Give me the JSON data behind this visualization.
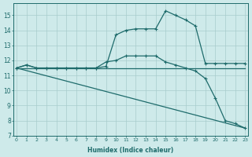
{
  "xlabel": "Humidex (Indice chaleur)",
  "background_color": "#ceeaea",
  "grid_color": "#a8cccc",
  "line_color": "#1e6b6b",
  "x_ticks": [
    0,
    1,
    2,
    3,
    4,
    5,
    6,
    7,
    8,
    9,
    10,
    11,
    12,
    13,
    14,
    15,
    16,
    17,
    18,
    19,
    20,
    21,
    22,
    23
  ],
  "ylim": [
    7,
    15.8
  ],
  "xlim": [
    -0.3,
    23.3
  ],
  "yticks": [
    7,
    8,
    9,
    10,
    11,
    12,
    13,
    14,
    15
  ],
  "series": [
    {
      "x": [
        0,
        1,
        2,
        3,
        4,
        5,
        6,
        7,
        8,
        9,
        10,
        11,
        12,
        13,
        14,
        15,
        16,
        17,
        18,
        19,
        20,
        21,
        22,
        23
      ],
      "y": [
        11.5,
        11.7,
        11.5,
        11.5,
        11.5,
        11.5,
        11.5,
        11.5,
        11.5,
        11.6,
        13.7,
        14.0,
        14.1,
        14.1,
        14.1,
        15.3,
        15.0,
        14.7,
        14.3,
        11.8,
        11.8,
        11.8,
        11.8,
        11.8
      ],
      "marker": true
    },
    {
      "x": [
        0,
        1,
        2,
        3,
        4,
        5,
        6,
        7,
        8,
        9,
        10,
        11,
        12,
        13,
        14,
        15,
        16,
        17,
        18,
        19,
        20,
        21,
        22,
        23
      ],
      "y": [
        11.5,
        11.5,
        11.5,
        11.5,
        11.5,
        11.5,
        11.5,
        11.5,
        11.5,
        11.5,
        11.5,
        11.5,
        11.5,
        11.5,
        11.5,
        11.5,
        11.5,
        11.5,
        11.5,
        11.5,
        11.5,
        11.5,
        11.5,
        11.5
      ],
      "marker": false
    },
    {
      "x": [
        0,
        1,
        2,
        3,
        4,
        5,
        6,
        7,
        8,
        9,
        10,
        11,
        12,
        13,
        14,
        15,
        16,
        17,
        18,
        19,
        20,
        21,
        22,
        23
      ],
      "y": [
        11.5,
        11.7,
        11.5,
        11.5,
        11.5,
        11.5,
        11.5,
        11.5,
        11.5,
        11.9,
        12.0,
        12.3,
        12.3,
        12.3,
        12.3,
        11.9,
        11.7,
        11.5,
        11.3,
        10.8,
        9.5,
        8.0,
        7.8,
        7.5
      ],
      "marker": true
    },
    {
      "x": [
        0,
        23
      ],
      "y": [
        11.5,
        7.5
      ],
      "marker": false
    }
  ]
}
